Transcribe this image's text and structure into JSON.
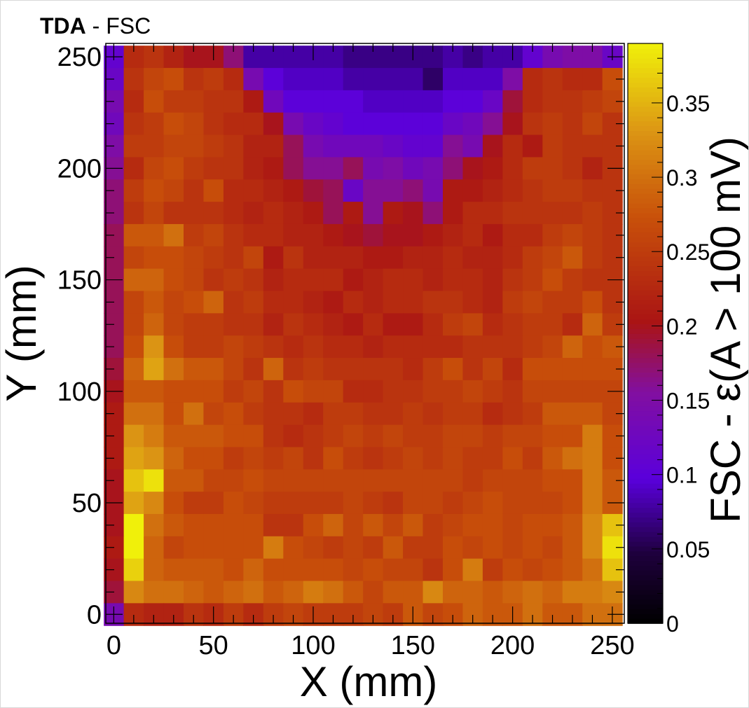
{
  "title": {
    "bold": "TDA",
    "rest": " - FSC"
  },
  "chart_data": {
    "type": "heatmap",
    "title": "TDA - FSC",
    "xlabel": "X (mm)",
    "ylabel": "Y (mm)",
    "zlabel": "FSC - ε(A > 100 mV)",
    "xlim": [
      -4,
      256
    ],
    "ylim": [
      -4,
      256
    ],
    "zlim": [
      0,
      0.39
    ],
    "x_ticks": [
      "0",
      "50",
      "100",
      "150",
      "200",
      "250"
    ],
    "y_ticks": [
      "0",
      "50",
      "100",
      "150",
      "200",
      "250"
    ],
    "z_ticks": [
      "0",
      "0.05",
      "0.1",
      "0.15",
      "0.2",
      "0.25",
      "0.3",
      "0.35"
    ],
    "colormap": "ROOT kBird-like (black-purple-red-orange-yellow)",
    "bin_width_mm": 10,
    "note": "grid of 26x26 bins, values rows listed from top (y=250) to bottom (y=0)",
    "values": [
      [
        0.11,
        0.23,
        0.24,
        0.22,
        0.2,
        0.2,
        0.17,
        0.08,
        0.08,
        0.08,
        0.08,
        0.08,
        0.07,
        0.07,
        0.07,
        0.07,
        0.07,
        0.08,
        0.07,
        0.08,
        0.08,
        0.11,
        0.14,
        0.15,
        0.15,
        0.12
      ],
      [
        0.12,
        0.24,
        0.26,
        0.27,
        0.24,
        0.25,
        0.23,
        0.14,
        0.1,
        0.09,
        0.09,
        0.09,
        0.08,
        0.08,
        0.08,
        0.08,
        0.06,
        0.09,
        0.09,
        0.09,
        0.15,
        0.23,
        0.24,
        0.23,
        0.23,
        0.27
      ],
      [
        0.14,
        0.23,
        0.27,
        0.25,
        0.25,
        0.24,
        0.24,
        0.21,
        0.13,
        0.1,
        0.1,
        0.1,
        0.1,
        0.09,
        0.09,
        0.09,
        0.09,
        0.1,
        0.1,
        0.12,
        0.19,
        0.23,
        0.24,
        0.24,
        0.25,
        0.26
      ],
      [
        0.13,
        0.24,
        0.25,
        0.27,
        0.26,
        0.24,
        0.23,
        0.23,
        0.2,
        0.14,
        0.12,
        0.11,
        0.1,
        0.1,
        0.1,
        0.1,
        0.1,
        0.12,
        0.13,
        0.16,
        0.2,
        0.24,
        0.25,
        0.24,
        0.26,
        0.24
      ],
      [
        0.15,
        0.25,
        0.25,
        0.26,
        0.26,
        0.25,
        0.24,
        0.22,
        0.22,
        0.18,
        0.14,
        0.13,
        0.13,
        0.13,
        0.12,
        0.11,
        0.11,
        0.16,
        0.14,
        0.2,
        0.23,
        0.21,
        0.25,
        0.24,
        0.24,
        0.24
      ],
      [
        0.16,
        0.23,
        0.26,
        0.27,
        0.25,
        0.24,
        0.24,
        0.22,
        0.21,
        0.18,
        0.16,
        0.16,
        0.18,
        0.14,
        0.15,
        0.13,
        0.14,
        0.17,
        0.2,
        0.21,
        0.23,
        0.25,
        0.25,
        0.24,
        0.22,
        0.24
      ],
      [
        0.17,
        0.25,
        0.27,
        0.26,
        0.24,
        0.27,
        0.23,
        0.23,
        0.22,
        0.21,
        0.19,
        0.18,
        0.12,
        0.16,
        0.16,
        0.17,
        0.14,
        0.21,
        0.21,
        0.22,
        0.23,
        0.24,
        0.25,
        0.25,
        0.24,
        0.24
      ],
      [
        0.17,
        0.24,
        0.26,
        0.24,
        0.24,
        0.24,
        0.23,
        0.22,
        0.23,
        0.22,
        0.21,
        0.18,
        0.21,
        0.16,
        0.21,
        0.2,
        0.17,
        0.21,
        0.23,
        0.23,
        0.24,
        0.24,
        0.24,
        0.24,
        0.25,
        0.24
      ],
      [
        0.18,
        0.28,
        0.28,
        0.3,
        0.25,
        0.26,
        0.24,
        0.23,
        0.23,
        0.22,
        0.22,
        0.21,
        0.2,
        0.19,
        0.2,
        0.2,
        0.21,
        0.22,
        0.23,
        0.21,
        0.23,
        0.23,
        0.25,
        0.26,
        0.25,
        0.24
      ],
      [
        0.18,
        0.26,
        0.27,
        0.27,
        0.26,
        0.25,
        0.24,
        0.26,
        0.21,
        0.24,
        0.22,
        0.22,
        0.22,
        0.21,
        0.21,
        0.22,
        0.22,
        0.23,
        0.22,
        0.22,
        0.23,
        0.25,
        0.26,
        0.28,
        0.25,
        0.24
      ],
      [
        0.18,
        0.29,
        0.29,
        0.27,
        0.26,
        0.24,
        0.25,
        0.24,
        0.22,
        0.23,
        0.23,
        0.23,
        0.21,
        0.22,
        0.23,
        0.23,
        0.22,
        0.23,
        0.23,
        0.22,
        0.24,
        0.25,
        0.27,
        0.25,
        0.24,
        0.24
      ],
      [
        0.18,
        0.26,
        0.28,
        0.26,
        0.27,
        0.29,
        0.24,
        0.25,
        0.23,
        0.23,
        0.22,
        0.21,
        0.23,
        0.22,
        0.23,
        0.23,
        0.24,
        0.24,
        0.23,
        0.22,
        0.25,
        0.26,
        0.25,
        0.25,
        0.27,
        0.24
      ],
      [
        0.18,
        0.26,
        0.29,
        0.26,
        0.25,
        0.25,
        0.24,
        0.24,
        0.22,
        0.24,
        0.23,
        0.22,
        0.21,
        0.23,
        0.21,
        0.21,
        0.23,
        0.25,
        0.26,
        0.23,
        0.24,
        0.25,
        0.25,
        0.23,
        0.29,
        0.25
      ],
      [
        0.18,
        0.27,
        0.33,
        0.27,
        0.25,
        0.25,
        0.26,
        0.25,
        0.24,
        0.23,
        0.24,
        0.23,
        0.23,
        0.22,
        0.23,
        0.23,
        0.23,
        0.23,
        0.24,
        0.24,
        0.24,
        0.25,
        0.26,
        0.29,
        0.27,
        0.28
      ],
      [
        0.19,
        0.29,
        0.34,
        0.3,
        0.28,
        0.28,
        0.26,
        0.24,
        0.29,
        0.24,
        0.25,
        0.24,
        0.24,
        0.24,
        0.24,
        0.23,
        0.25,
        0.27,
        0.24,
        0.26,
        0.23,
        0.27,
        0.27,
        0.27,
        0.27,
        0.27
      ],
      [
        0.2,
        0.28,
        0.28,
        0.27,
        0.27,
        0.27,
        0.25,
        0.26,
        0.24,
        0.27,
        0.26,
        0.26,
        0.23,
        0.23,
        0.24,
        0.24,
        0.25,
        0.25,
        0.26,
        0.25,
        0.24,
        0.26,
        0.26,
        0.26,
        0.26,
        0.26
      ],
      [
        0.21,
        0.3,
        0.3,
        0.27,
        0.3,
        0.26,
        0.27,
        0.25,
        0.24,
        0.24,
        0.23,
        0.25,
        0.25,
        0.24,
        0.24,
        0.25,
        0.24,
        0.25,
        0.25,
        0.23,
        0.24,
        0.25,
        0.28,
        0.28,
        0.28,
        0.26
      ],
      [
        0.21,
        0.33,
        0.31,
        0.28,
        0.28,
        0.28,
        0.27,
        0.27,
        0.24,
        0.23,
        0.24,
        0.25,
        0.26,
        0.25,
        0.26,
        0.25,
        0.25,
        0.26,
        0.26,
        0.25,
        0.26,
        0.26,
        0.27,
        0.27,
        0.31,
        0.27
      ],
      [
        0.21,
        0.34,
        0.33,
        0.29,
        0.27,
        0.27,
        0.25,
        0.26,
        0.25,
        0.26,
        0.24,
        0.27,
        0.25,
        0.24,
        0.25,
        0.26,
        0.25,
        0.26,
        0.25,
        0.25,
        0.27,
        0.25,
        0.28,
        0.3,
        0.31,
        0.27
      ],
      [
        0.2,
        0.36,
        0.38,
        0.28,
        0.28,
        0.26,
        0.26,
        0.27,
        0.26,
        0.26,
        0.26,
        0.26,
        0.26,
        0.26,
        0.26,
        0.26,
        0.26,
        0.26,
        0.25,
        0.26,
        0.26,
        0.26,
        0.27,
        0.27,
        0.31,
        0.28
      ],
      [
        0.2,
        0.34,
        0.32,
        0.27,
        0.25,
        0.25,
        0.27,
        0.26,
        0.25,
        0.25,
        0.25,
        0.25,
        0.26,
        0.25,
        0.24,
        0.26,
        0.26,
        0.25,
        0.26,
        0.27,
        0.26,
        0.26,
        0.26,
        0.27,
        0.31,
        0.28
      ],
      [
        0.2,
        0.39,
        0.3,
        0.28,
        0.27,
        0.27,
        0.27,
        0.27,
        0.24,
        0.24,
        0.27,
        0.29,
        0.26,
        0.28,
        0.26,
        0.28,
        0.25,
        0.26,
        0.27,
        0.27,
        0.26,
        0.27,
        0.27,
        0.28,
        0.32,
        0.36
      ],
      [
        0.21,
        0.39,
        0.29,
        0.26,
        0.27,
        0.27,
        0.27,
        0.27,
        0.31,
        0.27,
        0.26,
        0.25,
        0.26,
        0.25,
        0.28,
        0.25,
        0.25,
        0.27,
        0.26,
        0.27,
        0.26,
        0.27,
        0.26,
        0.28,
        0.32,
        0.38
      ],
      [
        0.2,
        0.37,
        0.29,
        0.28,
        0.28,
        0.28,
        0.27,
        0.29,
        0.27,
        0.27,
        0.27,
        0.27,
        0.26,
        0.27,
        0.26,
        0.26,
        0.24,
        0.27,
        0.31,
        0.25,
        0.27,
        0.26,
        0.27,
        0.28,
        0.3,
        0.36
      ],
      [
        0.19,
        0.32,
        0.3,
        0.3,
        0.29,
        0.28,
        0.29,
        0.3,
        0.28,
        0.29,
        0.31,
        0.3,
        0.28,
        0.26,
        0.28,
        0.28,
        0.32,
        0.29,
        0.29,
        0.28,
        0.29,
        0.3,
        0.29,
        0.31,
        0.31,
        0.32
      ],
      [
        0.14,
        0.23,
        0.22,
        0.22,
        0.24,
        0.23,
        0.25,
        0.23,
        0.25,
        0.26,
        0.25,
        0.25,
        0.25,
        0.26,
        0.25,
        0.28,
        0.26,
        0.27,
        0.29,
        0.28,
        0.28,
        0.3,
        0.28,
        0.28,
        0.3,
        0.3
      ]
    ]
  }
}
